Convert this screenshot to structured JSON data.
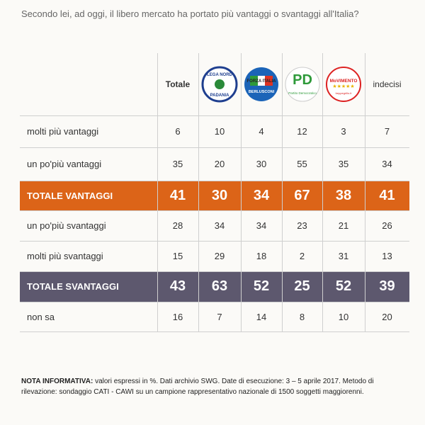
{
  "title": "Secondo lei, ad oggi, il libero mercato ha portato più vantaggi o svantaggi all'Italia?",
  "header": {
    "total": "Totale",
    "undecided": "indecisi",
    "logos": [
      {
        "top": "LEGA NORD",
        "bottom": "PADANIA"
      },
      {
        "top": "FORZA ITALIA",
        "bottom": "BERLUSCONI"
      },
      {
        "top": "PD",
        "bottom": "Partito Democratico"
      },
      {
        "top": "MoVIMENTO",
        "bottom": "beppegrillo.it"
      }
    ]
  },
  "table": {
    "rows": [
      {
        "label": "molti più vantaggi",
        "values": [
          6,
          10,
          4,
          12,
          3,
          7
        ]
      },
      {
        "label": "un po'più vantaggi",
        "values": [
          35,
          20,
          30,
          55,
          35,
          34
        ]
      },
      {
        "label": "TOTALE VANTAGGI",
        "values": [
          41,
          30,
          34,
          67,
          38,
          41
        ],
        "highlight": "#dc6418"
      },
      {
        "label": "un po'più svantaggi",
        "values": [
          28,
          34,
          34,
          23,
          21,
          26
        ]
      },
      {
        "label": "molti più svantaggi",
        "values": [
          15,
          29,
          18,
          2,
          31,
          13
        ]
      },
      {
        "label": "TOTALE SVANTAGGI",
        "values": [
          43,
          63,
          52,
          25,
          52,
          39
        ],
        "highlight": "#5d586e"
      },
      {
        "label": "non sa",
        "values": [
          16,
          7,
          14,
          8,
          10,
          20
        ]
      }
    ]
  },
  "note": {
    "label": "NOTA INFORMATIVA:",
    "text": "valori espressi in %. Dati archivio SWG. Date di esecuzione: 3 – 5 aprile 2017. Metodo di rilevazione: sondaggio CATI - CAWI su un campione rappresentativo nazionale di 1500 soggetti maggiorenni."
  }
}
